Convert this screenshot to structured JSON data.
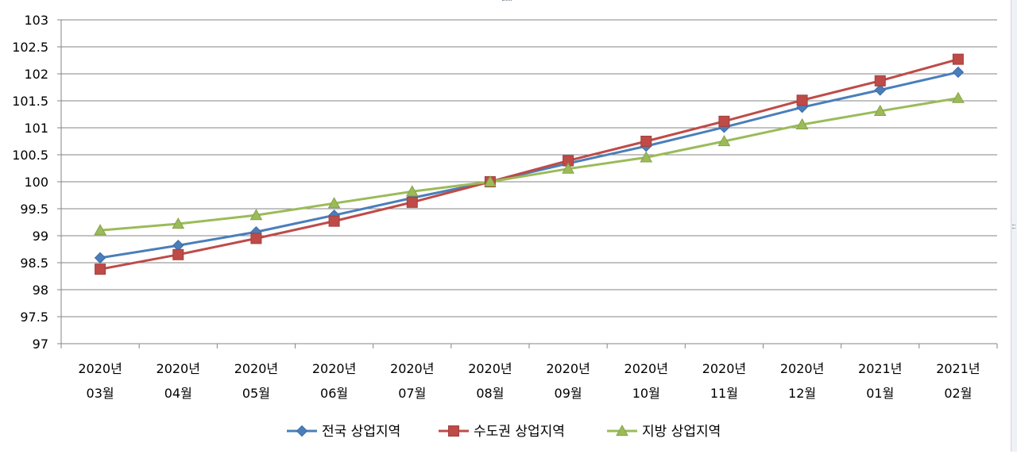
{
  "chart_data": {
    "type": "line",
    "title": "",
    "xlabel": "",
    "ylabel": "",
    "ylim": [
      97,
      103
    ],
    "ytick_step": 0.5,
    "yticks": [
      "97",
      "97.5",
      "98",
      "98.5",
      "99",
      "99.5",
      "100",
      "100.5",
      "101",
      "101.5",
      "102",
      "102.5",
      "103"
    ],
    "grid": true,
    "legend_position": "bottom",
    "categories": [
      {
        "year": "2020년",
        "month": "03월"
      },
      {
        "year": "2020년",
        "month": "04월"
      },
      {
        "year": "2020년",
        "month": "05월"
      },
      {
        "year": "2020년",
        "month": "06월"
      },
      {
        "year": "2020년",
        "month": "07월"
      },
      {
        "year": "2020년",
        "month": "08월"
      },
      {
        "year": "2020년",
        "month": "09월"
      },
      {
        "year": "2020년",
        "month": "10월"
      },
      {
        "year": "2020년",
        "month": "11월"
      },
      {
        "year": "2020년",
        "month": "12월"
      },
      {
        "year": "2021년",
        "month": "01월"
      },
      {
        "year": "2021년",
        "month": "02월"
      }
    ],
    "series": [
      {
        "name": "전국 상업지역",
        "color": "#4a7ebb",
        "marker": "diamond",
        "values": [
          98.59,
          98.82,
          99.07,
          99.38,
          99.7,
          100.0,
          100.34,
          100.66,
          101.01,
          101.38,
          101.7,
          102.03
        ]
      },
      {
        "name": "수도권 상업지역",
        "color": "#be4b48",
        "marker": "square",
        "values": [
          98.38,
          98.65,
          98.95,
          99.27,
          99.62,
          100.0,
          100.39,
          100.75,
          101.12,
          101.51,
          101.87,
          102.27
        ]
      },
      {
        "name": "지방 상업지역",
        "color": "#9bbb59",
        "marker": "triangle",
        "values": [
          99.1,
          99.22,
          99.38,
          99.6,
          99.82,
          100.0,
          100.24,
          100.45,
          100.75,
          101.06,
          101.31,
          101.55
        ]
      }
    ]
  }
}
